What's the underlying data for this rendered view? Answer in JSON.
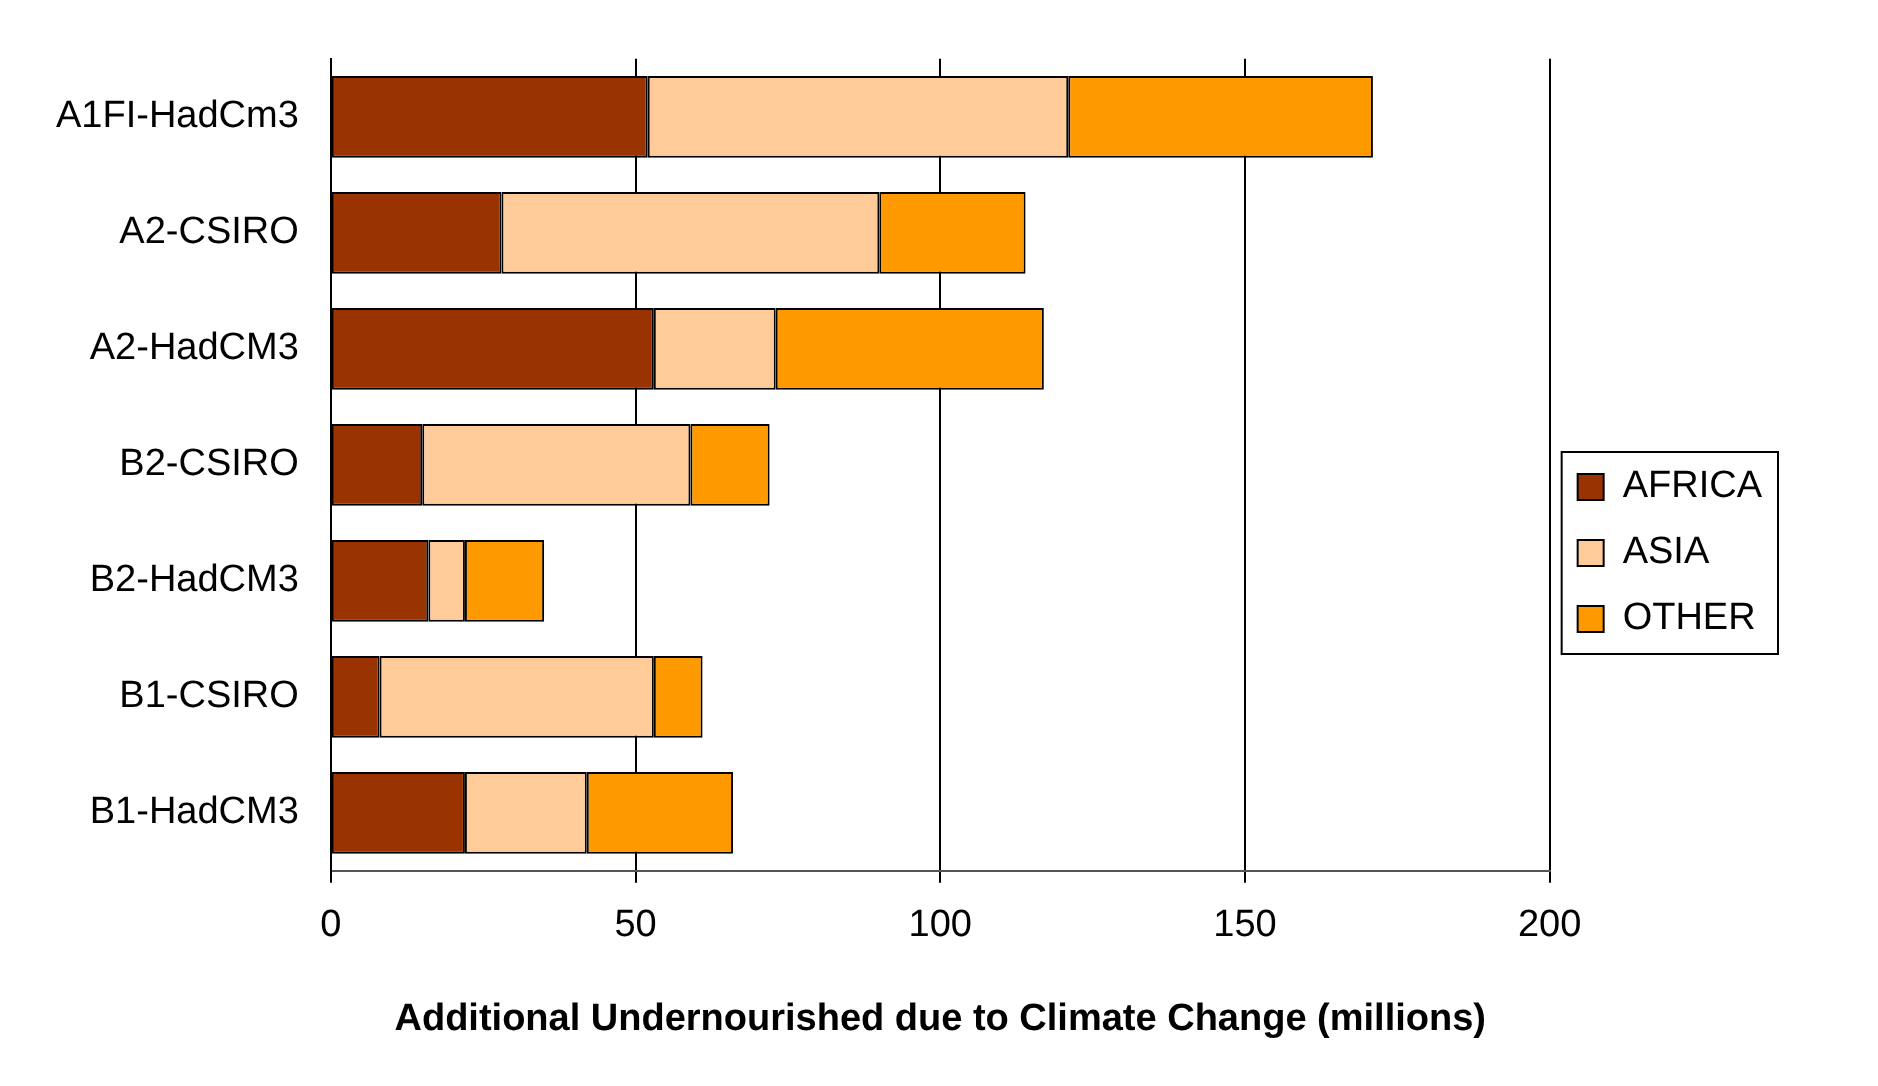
{
  "chart_data": {
    "type": "bar",
    "orientation": "horizontal",
    "stacked": true,
    "xlabel": "Additional Undernourished due to Climate Change (millions)",
    "categories": [
      "A1FI-HadCm3",
      "A2-CSIRO",
      "A2-HadCM3",
      "B2-CSIRO",
      "B2-HadCM3",
      "B1-CSIRO",
      "B1-HadCM3"
    ],
    "series": [
      {
        "name": "AFRICA",
        "color": "#993300",
        "values": [
          52,
          28,
          53,
          15,
          16,
          8,
          22
        ]
      },
      {
        "name": "ASIA",
        "color": "#ffcc99",
        "values": [
          69,
          62,
          20,
          44,
          6,
          45,
          20
        ]
      },
      {
        "name": "OTHER",
        "color": "#ff9900",
        "values": [
          50,
          24,
          44,
          13,
          13,
          8,
          24
        ]
      }
    ],
    "xlim": [
      0,
      200
    ],
    "xticks": [
      0,
      50,
      100,
      150,
      200
    ],
    "grid": "x",
    "legend": "right"
  }
}
